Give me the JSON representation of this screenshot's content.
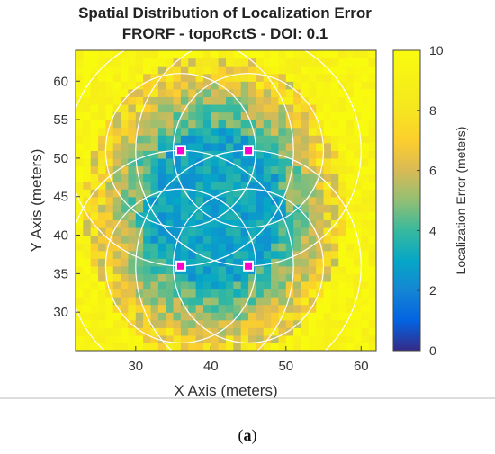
{
  "chart_data": {
    "type": "heatmap",
    "title": "Spatial Distribution of Localization Error",
    "subtitle": "FRORF - topoRctS - DOI: 0.1",
    "xlabel": "X Axis (meters)",
    "ylabel": "Y Axis (meters)",
    "xlim": [
      22,
      62
    ],
    "ylim": [
      25,
      64
    ],
    "xticks": [
      30,
      40,
      50,
      60
    ],
    "yticks": [
      30,
      35,
      40,
      45,
      50,
      55,
      60
    ],
    "colorbar": {
      "label": "Localization Error (meters)",
      "range": [
        0,
        10
      ],
      "ticks": [
        0,
        2,
        4,
        6,
        8,
        10
      ],
      "colormap": "parula"
    },
    "anchors": [
      {
        "x": 36,
        "y": 51
      },
      {
        "x": 45,
        "y": 51
      },
      {
        "x": 36,
        "y": 36
      },
      {
        "x": 45,
        "y": 36
      }
    ],
    "anchor_color": "#ff00cc",
    "range_circle_radii": [
      10,
      15
    ],
    "range_circle_color": "#ffffff",
    "error_summary": {
      "inner_region_approx": 2.5,
      "edge_region_approx": 10
    }
  },
  "caption": {
    "open": "(",
    "letter": "a",
    "close": ")"
  }
}
